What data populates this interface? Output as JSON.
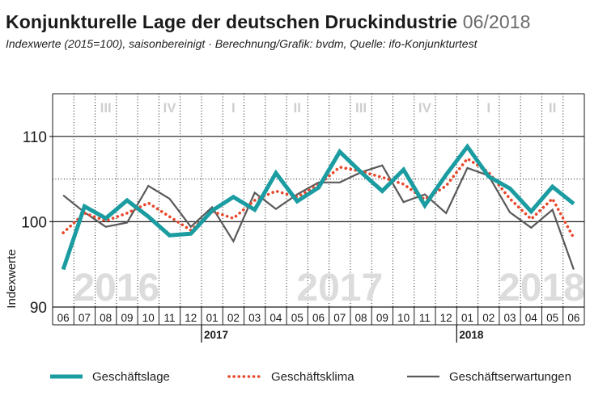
{
  "header": {
    "title": "Konjunkturelle Lage der deutschen Druckindustrie",
    "date": "06/2018",
    "subtitle": "Indexwerte (2015=100), saisonbereinigt · Berechnung/Grafik: bvdm, Quelle: ifo-Konjunkturtest"
  },
  "chart_data": {
    "type": "line",
    "ylabel": "Indexwerte",
    "ylim": [
      90,
      115
    ],
    "yticks": [
      90,
      100,
      110
    ],
    "months": [
      "06",
      "07",
      "08",
      "09",
      "10",
      "11",
      "12",
      "01",
      "02",
      "03",
      "04",
      "05",
      "06",
      "07",
      "08",
      "09",
      "10",
      "11",
      "12",
      "01",
      "02",
      "03",
      "04",
      "05",
      "06"
    ],
    "years": [
      {
        "label": "2017",
        "at_index": 7
      },
      {
        "label": "2018",
        "at_index": 19
      }
    ],
    "background_years": [
      {
        "label": "2016",
        "at_index": 2.5
      },
      {
        "label": "2017",
        "at_index": 13
      },
      {
        "label": "2018",
        "at_index": 22.5
      }
    ],
    "quarters": [
      {
        "label": "III",
        "start": 1,
        "end": 3
      },
      {
        "label": "IV",
        "start": 4,
        "end": 6
      },
      {
        "label": "I",
        "start": 7,
        "end": 9
      },
      {
        "label": "II",
        "start": 10,
        "end": 12
      },
      {
        "label": "III",
        "start": 13,
        "end": 15
      },
      {
        "label": "IV",
        "start": 16,
        "end": 18
      },
      {
        "label": "I",
        "start": 19,
        "end": 21
      },
      {
        "label": "II",
        "start": 22,
        "end": 24
      }
    ],
    "series": [
      {
        "name": "Geschäftslage",
        "color": "#1a9ca1",
        "style": "solid-thick",
        "values": [
          94.4,
          101.8,
          100.4,
          102.5,
          100.6,
          98.4,
          98.6,
          101.3,
          102.9,
          101.4,
          105.7,
          102.4,
          104.0,
          108.2,
          105.8,
          103.6,
          106.1,
          101.9,
          105.5,
          108.8,
          105.3,
          103.9,
          101.2,
          104.1,
          102.1
        ]
      },
      {
        "name": "Geschäftsklima",
        "color": "#e8472b",
        "style": "dotted",
        "values": [
          98.7,
          101.0,
          100.1,
          101.0,
          102.2,
          100.6,
          99.0,
          101.2,
          100.4,
          102.5,
          103.6,
          102.9,
          104.3,
          106.4,
          105.9,
          105.2,
          104.4,
          102.6,
          104.2,
          107.4,
          105.8,
          102.7,
          100.3,
          102.7,
          98.1
        ]
      },
      {
        "name": "Geschäftserwartungen",
        "color": "#595959",
        "style": "solid-thin",
        "values": [
          103.1,
          101.1,
          99.4,
          99.9,
          104.2,
          102.7,
          99.4,
          101.7,
          97.7,
          103.4,
          101.5,
          103.2,
          104.6,
          104.6,
          105.8,
          106.6,
          102.3,
          103.2,
          101.0,
          106.3,
          105.4,
          101.1,
          99.3,
          101.4,
          94.4
        ]
      }
    ]
  }
}
